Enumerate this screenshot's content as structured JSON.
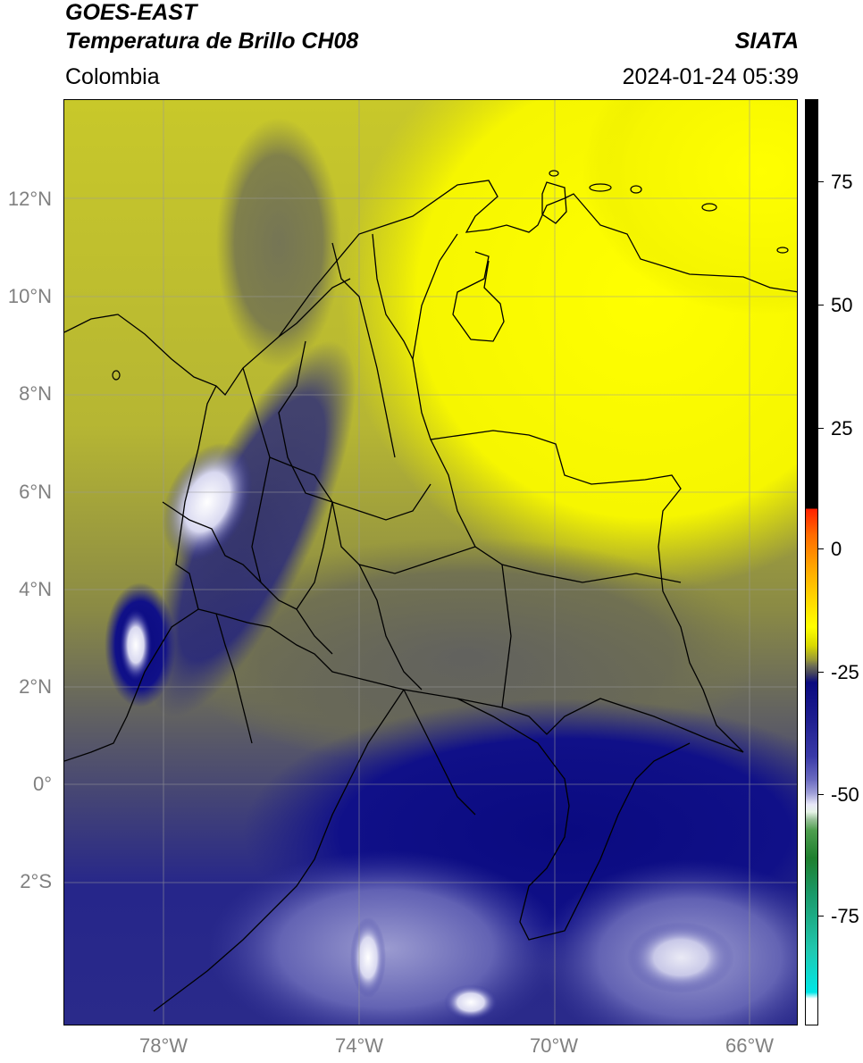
{
  "header": {
    "satellite": "GOES-EAST",
    "product": "Temperatura de Brillo CH08",
    "agency": "SIATA",
    "region": "Colombia",
    "datetime": "2024-01-24 05:39"
  },
  "map": {
    "lat_ticks": [
      "12°N",
      "10°N",
      "8°N",
      "6°N",
      "4°N",
      "2°N",
      "0°",
      "2°S"
    ],
    "lon_ticks": [
      "78°W",
      "74°W",
      "70°W",
      "66°W"
    ],
    "extent_lon": [
      -80.0,
      -65.0
    ],
    "extent_lat": [
      -5.0,
      14.0
    ]
  },
  "colorbar": {
    "ticks": [
      "75",
      "50",
      "25",
      "0",
      "-25",
      "-50",
      "-75"
    ],
    "colors": {
      "black": "#000000",
      "red": "#ff2000",
      "orange": "#ffa500",
      "yellow": "#ffff00",
      "olive": "#9a9a35",
      "gray": "#45455d",
      "navy": "#0a0a7f",
      "lavender": "#a0a0d8",
      "white": "#ffffff",
      "green": "#1e7f2e",
      "cyan": "#00e6e6"
    }
  }
}
